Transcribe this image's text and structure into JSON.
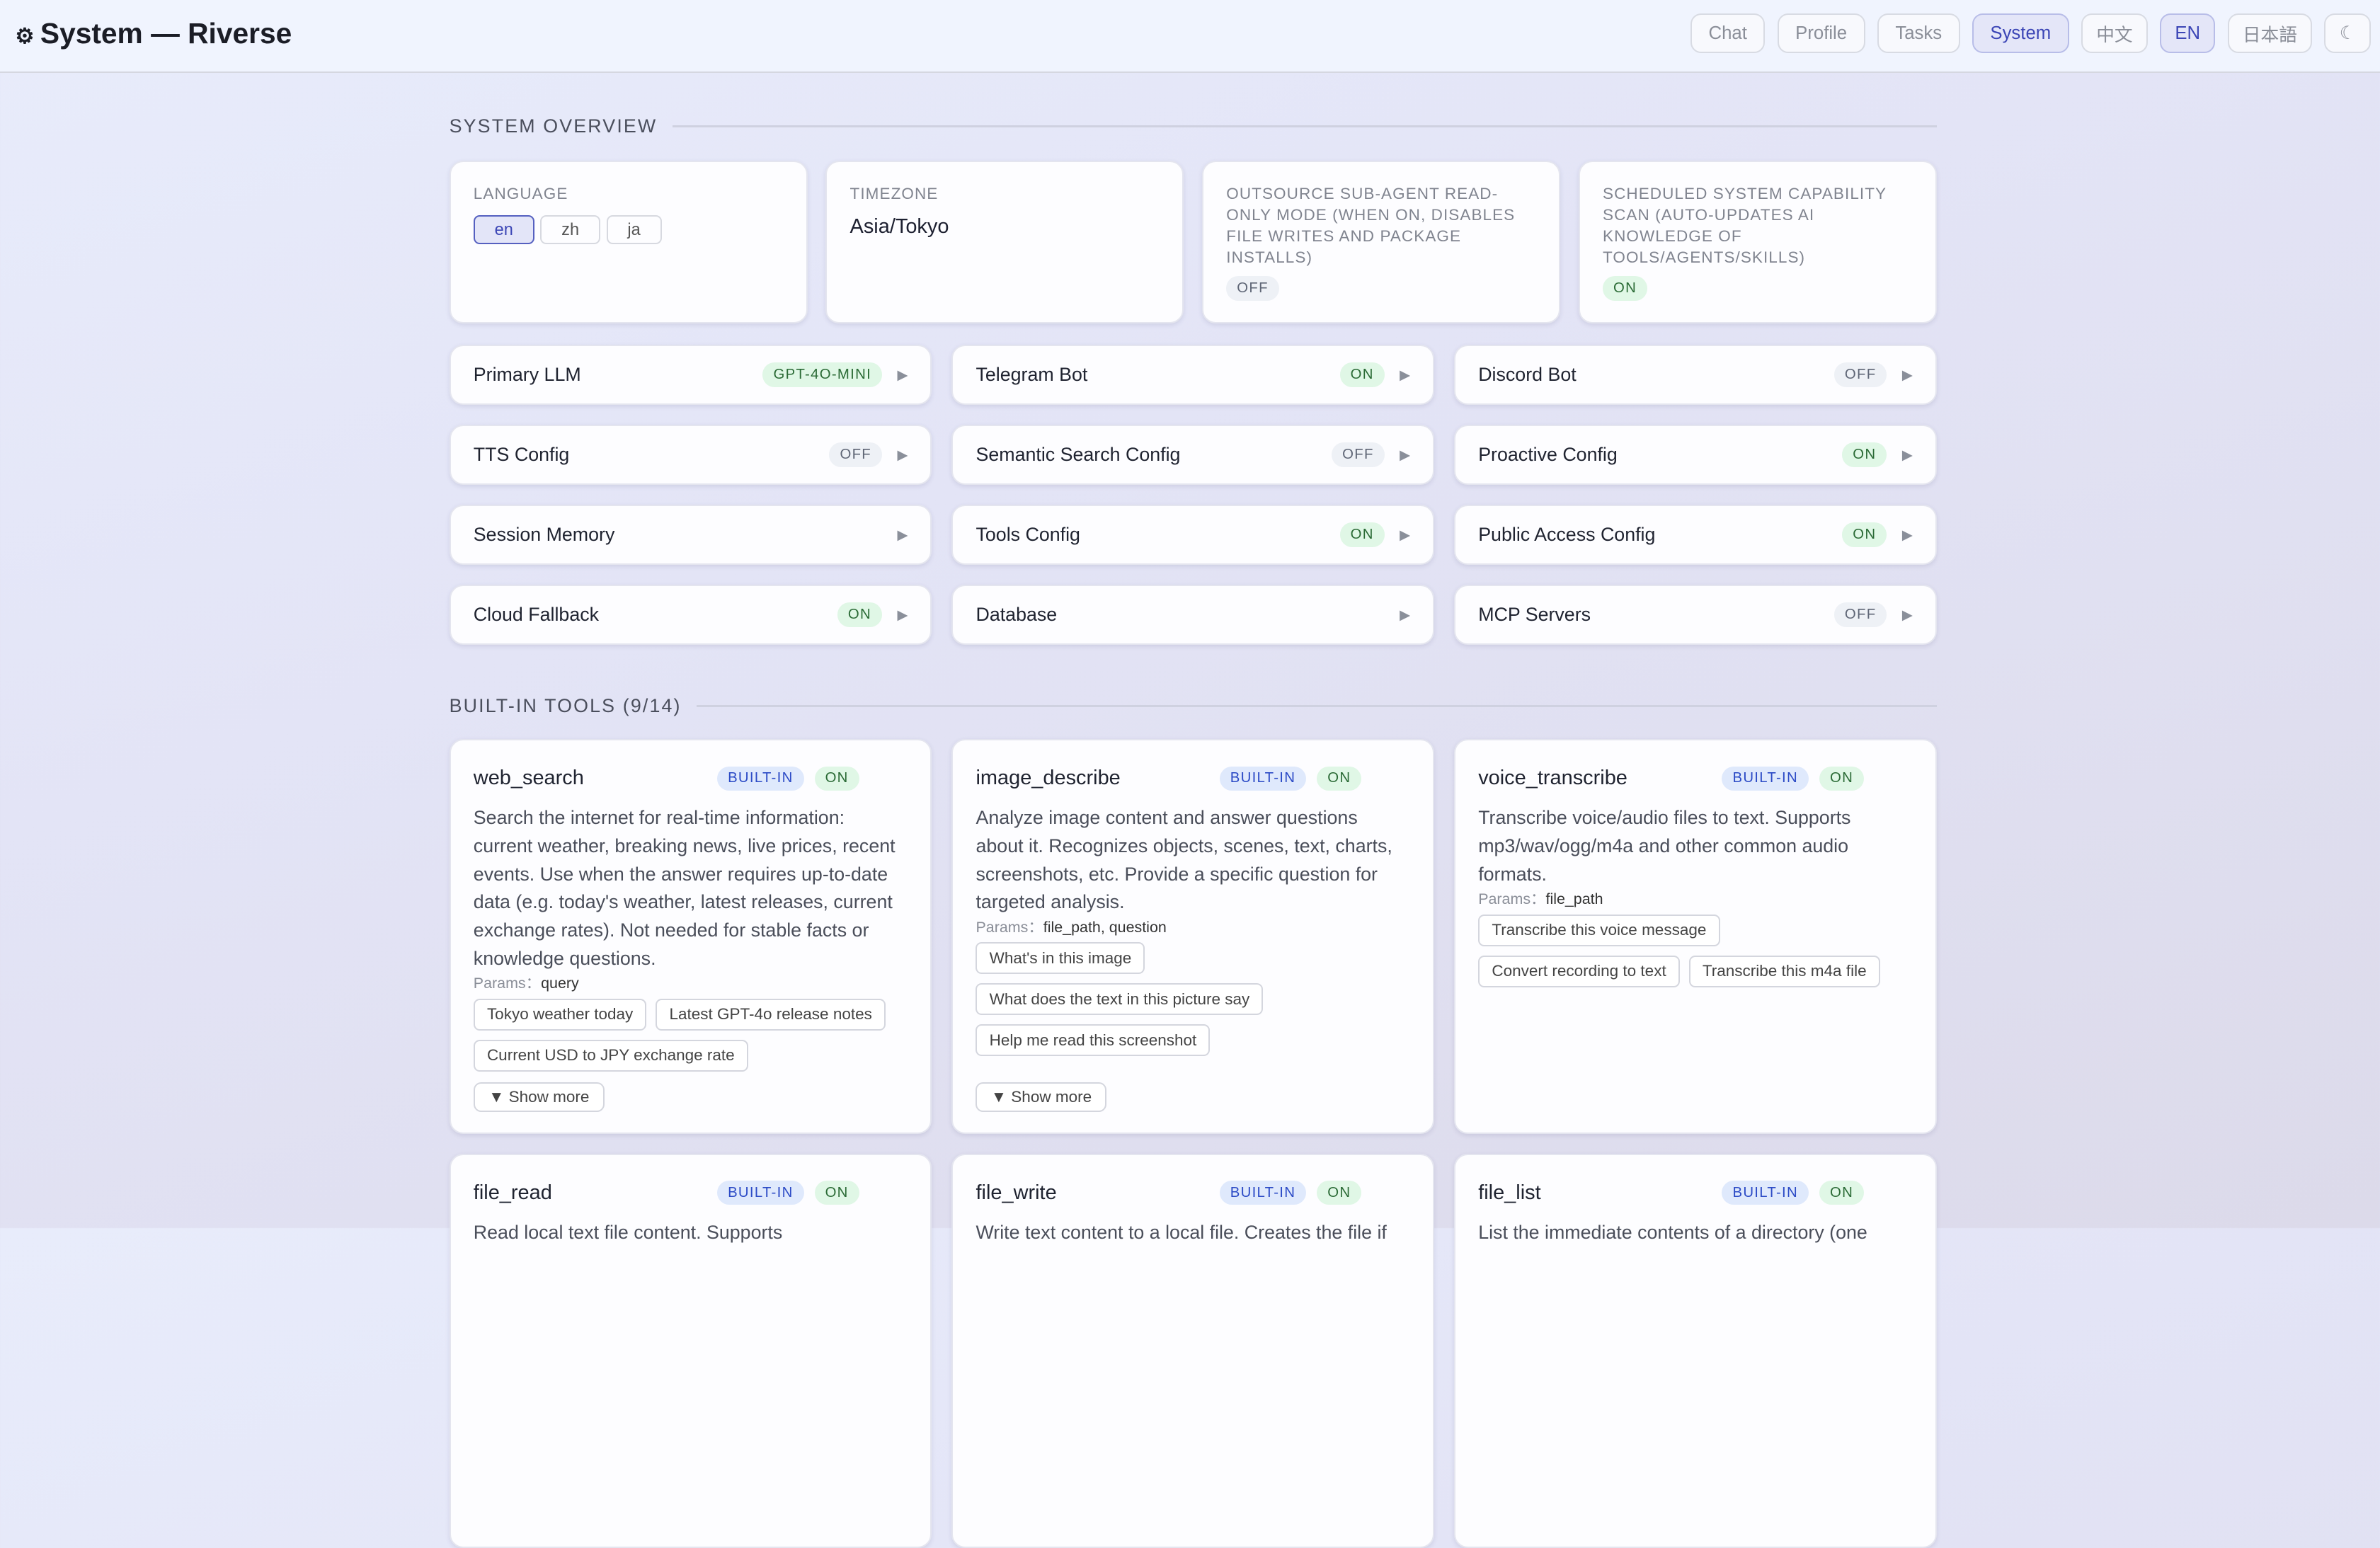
{
  "header": {
    "gear_icon": "gear-icon",
    "title": "System — Riverse",
    "nav": [
      "Chat",
      "Profile",
      "Tasks",
      "System"
    ],
    "active_nav": "System",
    "langs": [
      "中文",
      "EN",
      "日本語"
    ],
    "active_lang": "EN",
    "theme_icon": "moon-icon"
  },
  "overview": {
    "section_title": "SYSTEM OVERVIEW",
    "language": {
      "label": "LANGUAGE",
      "options": [
        "en",
        "zh",
        "ja"
      ],
      "selected": "en"
    },
    "timezone": {
      "label": "TIMEZONE",
      "value": "Asia/Tokyo"
    },
    "outsource": {
      "label": "OUTSOURCE SUB-AGENT READ-ONLY MODE (WHEN ON, DISABLES FILE WRITES AND PACKAGE INSTALLS)",
      "status": "OFF"
    },
    "scan": {
      "label": "SCHEDULED SYSTEM CAPABILITY SCAN (AUTO-UPDATES AI KNOWLEDGE OF TOOLS/AGENTS/SKILLS)",
      "status": "ON"
    }
  },
  "configs": [
    {
      "name": "Primary LLM",
      "badge": "GPT-4O-MINI",
      "state": "on"
    },
    {
      "name": "Telegram Bot",
      "badge": "ON",
      "state": "on"
    },
    {
      "name": "Discord Bot",
      "badge": "OFF",
      "state": "off"
    },
    {
      "name": "TTS Config",
      "badge": "OFF",
      "state": "off"
    },
    {
      "name": "Semantic Search Config",
      "badge": "OFF",
      "state": "off"
    },
    {
      "name": "Proactive Config",
      "badge": "ON",
      "state": "on"
    },
    {
      "name": "Session Memory",
      "badge": "",
      "state": ""
    },
    {
      "name": "Tools Config",
      "badge": "ON",
      "state": "on"
    },
    {
      "name": "Public Access Config",
      "badge": "ON",
      "state": "on"
    },
    {
      "name": "Cloud Fallback",
      "badge": "ON",
      "state": "on"
    },
    {
      "name": "Database",
      "badge": "",
      "state": ""
    },
    {
      "name": "MCP Servers",
      "badge": "OFF",
      "state": "off"
    }
  ],
  "tools": {
    "section_title": "BUILT-IN TOOLS (9/14)",
    "builtin_label": "BUILT-IN",
    "params_label": "Params：",
    "show_more": "▼ Show more",
    "items": [
      {
        "name": "web_search",
        "status": "ON",
        "desc": "Search the internet for real-time information: current weather, breaking news, live prices, recent events. Use when the answer requires up-to-date data (e.g. today's weather, latest releases, current exchange rates). Not needed for stable facts or knowledge questions.",
        "params": "query",
        "examples": [
          "Tokyo weather today",
          "Latest GPT-4o release notes",
          "Current USD to JPY exchange rate"
        ],
        "show_more": true
      },
      {
        "name": "image_describe",
        "status": "ON",
        "desc": "Analyze image content and answer questions about it. Recognizes objects, scenes, text, charts, screenshots, etc. Provide a specific question for targeted analysis.",
        "params": "file_path, question",
        "examples": [
          "What's in this image",
          "What does the text in this picture say",
          "Help me read this screenshot",
          ""
        ],
        "show_more": true
      },
      {
        "name": "voice_transcribe",
        "status": "ON",
        "desc": "Transcribe voice/audio files to text. Supports mp3/wav/ogg/m4a and other common audio formats.",
        "params": "file_path",
        "examples": [
          "Transcribe this voice message",
          "Convert recording to text",
          "Transcribe this m4a file"
        ],
        "show_more": false
      },
      {
        "name": "file_read",
        "status": "ON",
        "desc": "Read local text file content. Supports",
        "params": "",
        "examples": [],
        "show_more": false
      },
      {
        "name": "file_write",
        "status": "ON",
        "desc": "Write text content to a local file. Creates the file if",
        "params": "",
        "examples": [],
        "show_more": false
      },
      {
        "name": "file_list",
        "status": "ON",
        "desc": "List the immediate contents of a directory (one",
        "params": "",
        "examples": [],
        "show_more": false
      }
    ]
  }
}
